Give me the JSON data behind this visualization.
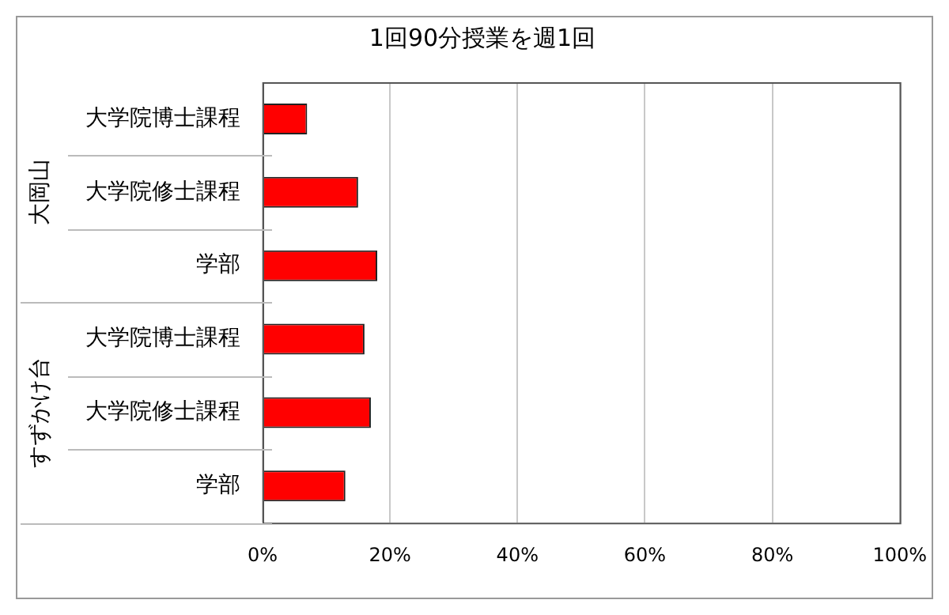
{
  "chart_data": {
    "type": "bar",
    "orientation": "horizontal",
    "title": "1回90分授業を週1回",
    "categories": [
      "大学院博士課程",
      "大学院修士課程",
      "学部",
      "大学院博士課程",
      "大学院修士課程",
      "学部"
    ],
    "values": [
      7,
      15,
      18,
      16,
      17,
      13
    ],
    "color": "#ff0000",
    "xlim": [
      0,
      100
    ],
    "xticks": [
      {
        "value": 0,
        "label": "0%"
      },
      {
        "value": 20,
        "label": "20%"
      },
      {
        "value": 40,
        "label": "40%"
      },
      {
        "value": 60,
        "label": "60%"
      },
      {
        "value": 80,
        "label": "80%"
      },
      {
        "value": 100,
        "label": "100%"
      }
    ],
    "annotations": [
      "大岡山",
      "すずかけ台"
    ],
    "grid": "x",
    "legend": false
  }
}
